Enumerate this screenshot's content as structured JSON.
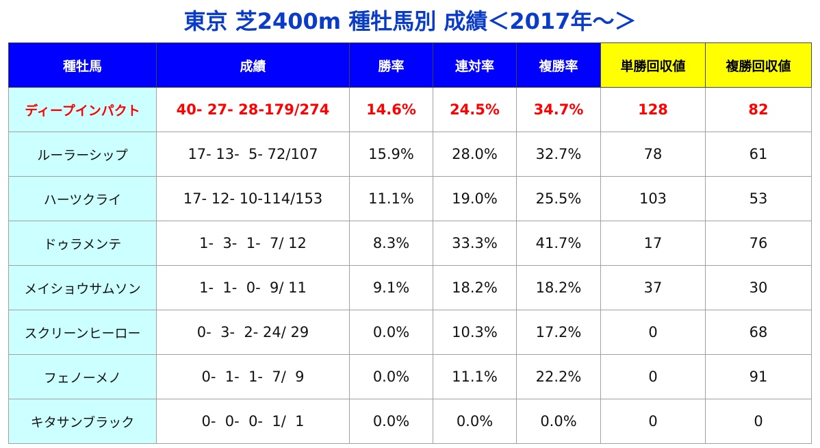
{
  "header": {
    "title": "東京 芝2400m 種牡馬別 成績＜2017年～＞"
  },
  "table": {
    "columns": [
      "種牡馬",
      "成績",
      "勝率",
      "連対率",
      "複勝率",
      "単勝回収値",
      "複勝回収値"
    ],
    "rows": [
      [
        "ディープインパクト",
        "40- 27- 28-179/274",
        "14.6%",
        "24.5%",
        "34.7%",
        "128",
        "82"
      ],
      [
        "ルーラーシップ",
        "17- 13-  5- 72/107",
        "15.9%",
        "28.0%",
        "32.7%",
        "78",
        "61"
      ],
      [
        "ハーツクライ",
        "17- 12- 10-114/153",
        "11.1%",
        "19.0%",
        "25.5%",
        "103",
        "53"
      ],
      [
        "ドゥラメンテ",
        "1-  3-  1-  7/ 12",
        "8.3%",
        "33.3%",
        "41.7%",
        "17",
        "76"
      ],
      [
        "メイショウサムソン",
        "1-  1-  0-  9/ 11",
        "9.1%",
        "18.2%",
        "18.2%",
        "37",
        "30"
      ],
      [
        "スクリーンヒーロー",
        "0-  3-  2- 24/ 29",
        "0.0%",
        "10.3%",
        "17.2%",
        "0",
        "68"
      ],
      [
        "フェノーメノ",
        "0-  1-  1-  7/  9",
        "0.0%",
        "11.1%",
        "22.2%",
        "0",
        "91"
      ],
      [
        "キタサンブラック",
        "0-  0-  0-  1/  1",
        "0.0%",
        "0.0%",
        "0.0%",
        "0",
        "0"
      ]
    ]
  }
}
